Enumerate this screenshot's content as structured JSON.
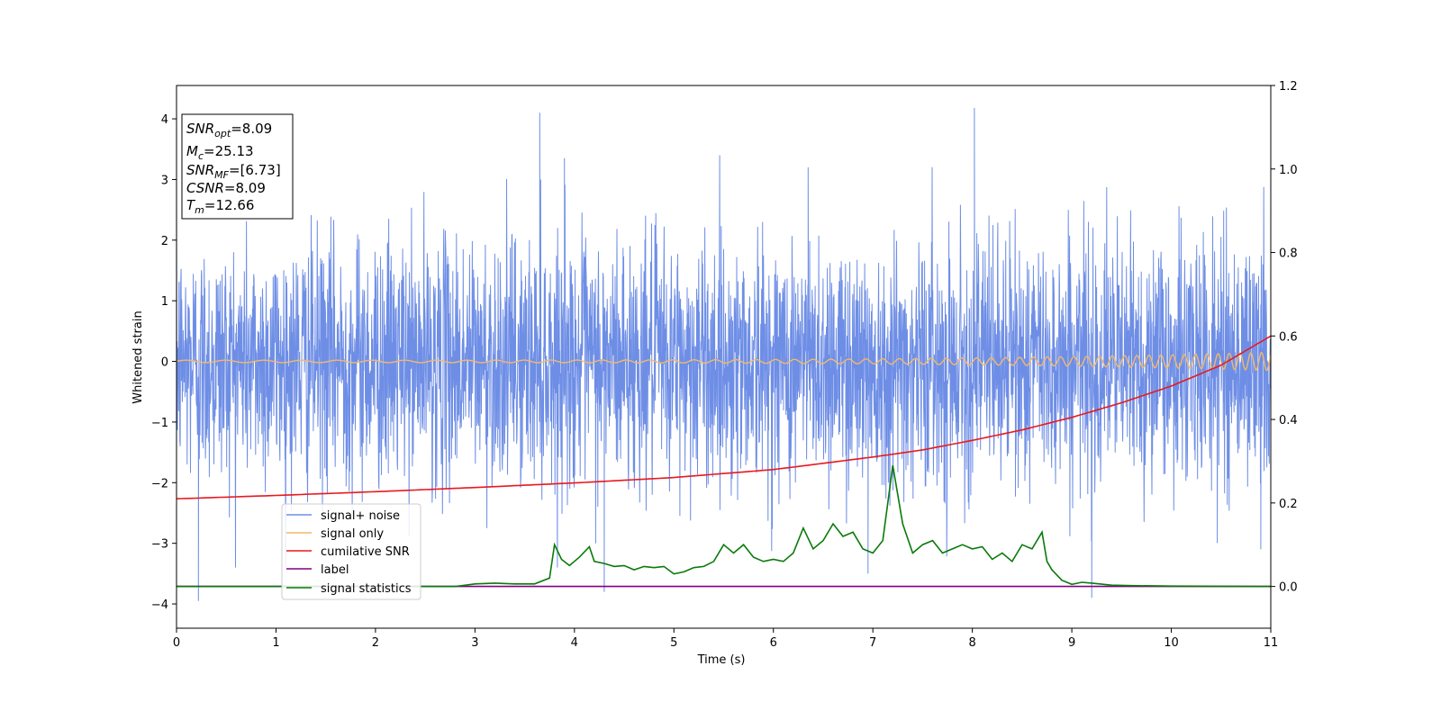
{
  "chart_data": {
    "type": "line",
    "xlabel": "Time (s)",
    "ylabel": "Whitened strain",
    "xlim": [
      0,
      11
    ],
    "ylim": [
      -4.4,
      4.55
    ],
    "y2lim": [
      -0.1,
      1.2
    ],
    "xticks": [
      0,
      1,
      2,
      3,
      4,
      5,
      6,
      7,
      8,
      9,
      10,
      11
    ],
    "yticks": [
      -4,
      -3,
      -2,
      -1,
      0,
      1,
      2,
      3,
      4
    ],
    "y2ticks": [
      0.0,
      0.2,
      0.4,
      0.6,
      0.8,
      1.0,
      1.2
    ],
    "legend_position": "lower-left",
    "colors": {
      "noise": "#6e8ee6",
      "signal": "#f2b96a",
      "snr": "#e8191f",
      "label": "#800080",
      "stats": "#0a7a0a"
    },
    "info_box": {
      "snr_opt": "8.09",
      "mc": "25.13",
      "snr_mf": "[6.73]",
      "csnr": "8.09",
      "tm": "12.66"
    },
    "series": [
      {
        "name": "signal+ noise",
        "noise_band": [
          -1.6,
          1.6
        ],
        "peaks": [
          [
            0.22,
            -3.95
          ],
          [
            3.65,
            4.1
          ],
          [
            3.9,
            3.35
          ],
          [
            4.3,
            -3.8
          ],
          [
            8.02,
            4.18
          ],
          [
            6.35,
            3.2
          ],
          [
            6.95,
            -3.5
          ],
          [
            9.2,
            -3.9
          ],
          [
            10.9,
            -3.1
          ]
        ]
      },
      {
        "name": "signal only",
        "chirp": {
          "start_amp": 0.02,
          "end_amp": 0.15,
          "start_freq": 2.5,
          "end_freq": 9.5
        }
      },
      {
        "name": "cumilative SNR",
        "axis": "right",
        "x": [
          0,
          1,
          2,
          3,
          4,
          5,
          6,
          7,
          7.5,
          8,
          8.5,
          9,
          9.5,
          10,
          10.5,
          11
        ],
        "y": [
          0.21,
          0.218,
          0.227,
          0.237,
          0.248,
          0.261,
          0.28,
          0.31,
          0.327,
          0.35,
          0.375,
          0.405,
          0.44,
          0.48,
          0.53,
          0.6
        ]
      },
      {
        "name": "label",
        "axis": "right",
        "x": [
          0,
          11
        ],
        "y": [
          0.0,
          0.0
        ]
      },
      {
        "name": "signal statistics",
        "axis": "right",
        "x": [
          0,
          2.8,
          3.0,
          3.2,
          3.4,
          3.6,
          3.75,
          3.8,
          3.87,
          3.95,
          4.05,
          4.15,
          4.2,
          4.3,
          4.4,
          4.5,
          4.6,
          4.7,
          4.8,
          4.9,
          5.0,
          5.1,
          5.2,
          5.3,
          5.4,
          5.5,
          5.6,
          5.7,
          5.8,
          5.9,
          6.0,
          6.1,
          6.2,
          6.3,
          6.4,
          6.5,
          6.6,
          6.7,
          6.8,
          6.9,
          7.0,
          7.1,
          7.2,
          7.3,
          7.4,
          7.5,
          7.6,
          7.7,
          7.8,
          7.9,
          8.0,
          8.1,
          8.2,
          8.3,
          8.4,
          8.5,
          8.6,
          8.7,
          8.75,
          8.8,
          8.9,
          9.0,
          9.1,
          9.2,
          9.4,
          9.6,
          10,
          11
        ],
        "y": [
          0.0,
          0.0,
          0.006,
          0.008,
          0.006,
          0.006,
          0.02,
          0.1,
          0.065,
          0.05,
          0.07,
          0.095,
          0.06,
          0.055,
          0.048,
          0.05,
          0.04,
          0.048,
          0.045,
          0.048,
          0.03,
          0.035,
          0.045,
          0.048,
          0.06,
          0.1,
          0.08,
          0.1,
          0.07,
          0.06,
          0.065,
          0.06,
          0.08,
          0.14,
          0.09,
          0.11,
          0.15,
          0.12,
          0.13,
          0.09,
          0.08,
          0.11,
          0.29,
          0.15,
          0.08,
          0.1,
          0.11,
          0.08,
          0.09,
          0.1,
          0.09,
          0.095,
          0.065,
          0.08,
          0.06,
          0.1,
          0.09,
          0.13,
          0.06,
          0.04,
          0.015,
          0.005,
          0.01,
          0.008,
          0.003,
          0.002,
          0.001,
          0.0
        ]
      }
    ]
  }
}
